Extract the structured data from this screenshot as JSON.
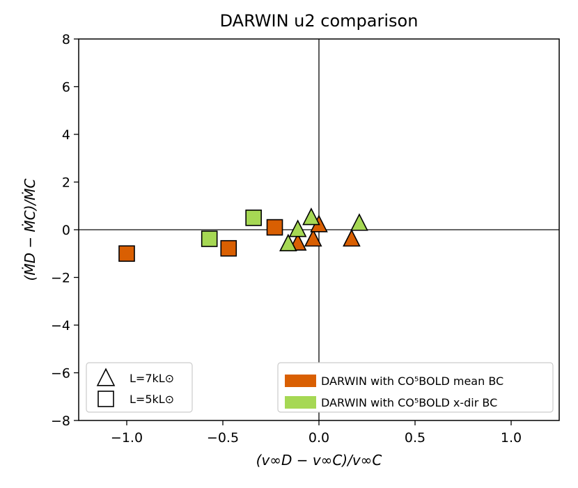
{
  "chart_data": {
    "type": "scatter",
    "title": "DARWIN u2 comparison",
    "xlabel": "(v∞D − v∞C)/v∞C",
    "ylabel": "(ṀD − ṀC)/ṀC",
    "xlim": [
      -1.25,
      1.25
    ],
    "ylim": [
      -8,
      8
    ],
    "xticks": [
      -1.0,
      -0.5,
      0.0,
      0.5,
      1.0
    ],
    "xtick_labels": [
      "−1.0",
      "−0.5",
      "0.0",
      "0.5",
      "1.0"
    ],
    "yticks": [
      -8,
      -6,
      -4,
      -2,
      0,
      2,
      4,
      6,
      8
    ],
    "ytick_labels": [
      "−8",
      "−6",
      "−4",
      "−2",
      "0",
      "2",
      "4",
      "6",
      "8"
    ],
    "reference_lines": {
      "x": 0,
      "y": 0
    },
    "colors": {
      "mean": "#d95f02",
      "xdir": "#a6d854"
    },
    "series": [
      {
        "name": "DARWIN with CO5BOLD mean BC",
        "color": "mean",
        "points": [
          {
            "x": -1.0,
            "y": -1.0,
            "marker": "square"
          },
          {
            "x": -0.47,
            "y": -0.78,
            "marker": "square"
          },
          {
            "x": -0.23,
            "y": 0.1,
            "marker": "square"
          },
          {
            "x": -0.11,
            "y": -0.55,
            "marker": "triangle"
          },
          {
            "x": -0.03,
            "y": -0.38,
            "marker": "triangle"
          },
          {
            "x": 0.0,
            "y": 0.22,
            "marker": "triangle"
          },
          {
            "x": 0.17,
            "y": -0.38,
            "marker": "triangle"
          }
        ]
      },
      {
        "name": "DARWIN with CO5BOLD x-dir BC",
        "color": "xdir",
        "points": [
          {
            "x": -0.57,
            "y": -0.38,
            "marker": "square"
          },
          {
            "x": -0.34,
            "y": 0.5,
            "marker": "square"
          },
          {
            "x": -0.16,
            "y": -0.58,
            "marker": "triangle"
          },
          {
            "x": -0.11,
            "y": 0.02,
            "marker": "triangle"
          },
          {
            "x": -0.04,
            "y": 0.52,
            "marker": "triangle"
          },
          {
            "x": 0.21,
            "y": 0.28,
            "marker": "triangle"
          }
        ]
      }
    ],
    "marker_legend": {
      "placement": "lower-left",
      "items": [
        {
          "marker": "triangle",
          "label": "L=7kL⊙"
        },
        {
          "marker": "square",
          "label": "L=5kL⊙"
        }
      ]
    },
    "color_legend": {
      "placement": "lower-right",
      "items": [
        {
          "color": "mean",
          "label": "DARWIN with CO⁵BOLD mean BC"
        },
        {
          "color": "xdir",
          "label": "DARWIN with CO⁵BOLD x-dir BC"
        }
      ]
    }
  }
}
